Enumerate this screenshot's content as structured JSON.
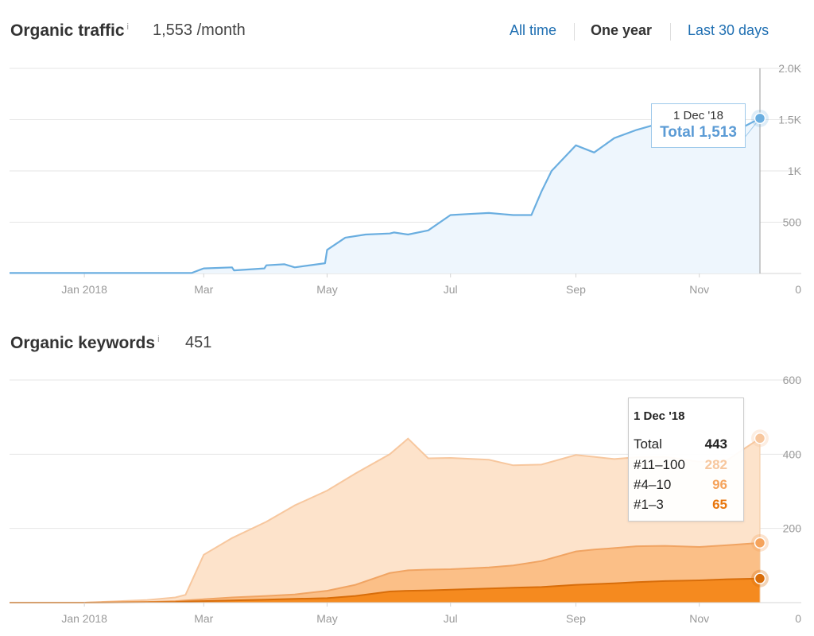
{
  "traffic": {
    "title": "Organic traffic",
    "info": "i",
    "value": "1,553 /month",
    "periods": [
      "All time",
      "One year",
      "Last 30 days"
    ],
    "active_period": "One year",
    "tooltip": {
      "date": "1 Dec '18",
      "label": "Total 1,513"
    }
  },
  "keywords": {
    "title": "Organic keywords",
    "info": "i",
    "value": "451",
    "tooltip": {
      "date": "1 Dec '18",
      "rows": [
        {
          "label": "Total",
          "value": "443",
          "color": "#222222"
        },
        {
          "label": "#11–100",
          "value": "282",
          "color": "#f7c79e"
        },
        {
          "label": "#4–10",
          "value": "96",
          "color": "#f5a35c"
        },
        {
          "label": "#1–3",
          "value": "65",
          "color": "#e8760c"
        }
      ]
    }
  },
  "colors": {
    "traffic_line": "#6aaee0",
    "traffic_fill": "#eef6fd",
    "kw_11_100": "#fde3cb",
    "kw_4_10": "#fbbf87",
    "kw_1_3": "#f58a1f",
    "kw_line_total": "#f7c79e",
    "kw_line_4_10": "#f0a463",
    "kw_line_1_3": "#d86d0a"
  },
  "chart_data": [
    {
      "type": "area",
      "x_ticks": [
        "Jan 2018",
        "Mar",
        "May",
        "Jul",
        "Sep",
        "Nov"
      ],
      "y_ticks": [
        "0",
        "500",
        "1K",
        "1.5K",
        "2.0K"
      ],
      "ylim": [
        0,
        2000
      ],
      "grid": true,
      "series": [
        {
          "name": "Total",
          "x": [
            "2017-11-25",
            "2018-01-01",
            "2018-02-10",
            "2018-02-23",
            "2018-03-01",
            "2018-03-15",
            "2018-03-16",
            "2018-03-31",
            "2018-04-01",
            "2018-04-10",
            "2018-04-15",
            "2018-04-30",
            "2018-05-01",
            "2018-05-10",
            "2018-05-20",
            "2018-06-01",
            "2018-06-03",
            "2018-06-10",
            "2018-06-20",
            "2018-07-01",
            "2018-07-10",
            "2018-07-20",
            "2018-08-01",
            "2018-08-10",
            "2018-08-15",
            "2018-08-20",
            "2018-09-01",
            "2018-09-10",
            "2018-09-20",
            "2018-10-01",
            "2018-10-10",
            "2018-10-20",
            "2018-11-01",
            "2018-11-10",
            "2018-11-20",
            "2018-12-01"
          ],
          "y": [
            5,
            5,
            5,
            5,
            50,
            60,
            30,
            50,
            80,
            90,
            60,
            100,
            230,
            350,
            380,
            390,
            400,
            380,
            420,
            570,
            580,
            590,
            570,
            570,
            800,
            1000,
            1250,
            1180,
            1320,
            1400,
            1450,
            1400,
            1380,
            1420,
            1400,
            1513
          ]
        }
      ],
      "tooltip": {
        "x": "1 Dec '18",
        "label": "Total 1,513"
      }
    },
    {
      "type": "area",
      "x_ticks": [
        "Jan 2018",
        "Mar",
        "May",
        "Jul",
        "Sep",
        "Nov"
      ],
      "y_ticks": [
        "0",
        "200",
        "400",
        "600"
      ],
      "ylim": [
        0,
        600
      ],
      "grid": true,
      "stacked": true,
      "x": [
        "2017-11-25",
        "2018-01-01",
        "2018-02-01",
        "2018-02-15",
        "2018-02-20",
        "2018-03-01",
        "2018-03-15",
        "2018-04-01",
        "2018-04-15",
        "2018-05-01",
        "2018-05-15",
        "2018-06-01",
        "2018-06-10",
        "2018-06-20",
        "2018-07-01",
        "2018-07-20",
        "2018-08-01",
        "2018-08-15",
        "2018-09-01",
        "2018-09-10",
        "2018-09-20",
        "2018-10-01",
        "2018-10-15",
        "2018-11-01",
        "2018-11-15",
        "2018-12-01"
      ],
      "series": [
        {
          "name": "#1–3",
          "y": [
            0,
            0,
            1,
            2,
            3,
            4,
            6,
            8,
            10,
            12,
            18,
            30,
            32,
            33,
            35,
            38,
            40,
            42,
            48,
            50,
            52,
            55,
            58,
            60,
            63,
            65
          ]
        },
        {
          "name": "#4–10",
          "y": [
            0,
            0,
            1,
            2,
            3,
            5,
            8,
            10,
            12,
            20,
            30,
            50,
            55,
            56,
            55,
            57,
            60,
            70,
            90,
            93,
            95,
            97,
            95,
            90,
            92,
            96
          ]
        },
        {
          "name": "#11–100",
          "y": [
            0,
            0,
            5,
            10,
            15,
            120,
            160,
            200,
            240,
            270,
            300,
            320,
            355,
            300,
            300,
            290,
            270,
            260,
            260,
            250,
            240,
            240,
            240,
            230,
            230,
            282
          ]
        }
      ],
      "totals": [
        0,
        0,
        7,
        14,
        21,
        129,
        174,
        218,
        262,
        302,
        348,
        400,
        442,
        389,
        390,
        385,
        370,
        372,
        398,
        393,
        387,
        392,
        393,
        380,
        385,
        443
      ],
      "tooltip": {
        "x": "1 Dec '18",
        "total": 443,
        "#11–100": 282,
        "#4–10": 96,
        "#1–3": 65
      }
    }
  ]
}
